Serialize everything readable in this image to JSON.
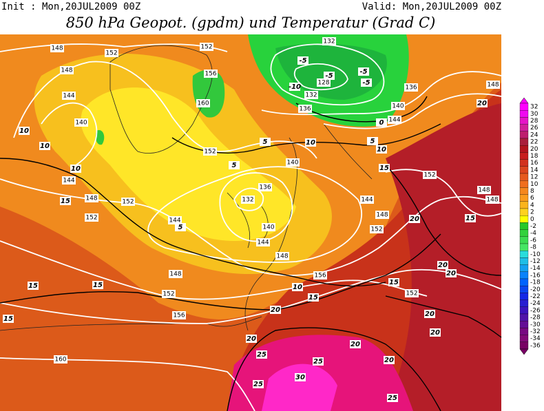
{
  "header": {
    "init": "Init : Mon,20JUL2009 00Z",
    "valid": "Valid: Mon,20JUL2009 00Z",
    "title": "850 hPa Geopot. (gpdm) und Temperatur (Grad C)"
  },
  "colorbar": {
    "labels": [
      32,
      30,
      28,
      26,
      24,
      22,
      20,
      18,
      16,
      14,
      12,
      10,
      8,
      6,
      4,
      2,
      0,
      -2,
      -4,
      -6,
      -8,
      -10,
      -12,
      -14,
      -16,
      -18,
      -20,
      -22,
      -24,
      -26,
      -28,
      -30,
      -32,
      -34,
      -36
    ]
  },
  "geopotential_labels": [
    "148",
    "152",
    "148",
    "144",
    "140",
    "156",
    "160",
    "152",
    "132",
    "132",
    "128",
    "136",
    "136",
    "140",
    "144",
    "152",
    "140",
    "136",
    "132",
    "144",
    "148",
    "152",
    "152",
    "144",
    "140",
    "144",
    "148",
    "144",
    "148",
    "152",
    "152",
    "148",
    "148",
    "148",
    "148",
    "152",
    "156",
    "160",
    "156",
    "152"
  ],
  "temperature_labels": [
    "10",
    "10",
    "10",
    "15",
    "15",
    "15",
    "15",
    "20",
    "20",
    "25",
    "25",
    "30",
    "25",
    "25",
    "20",
    "20",
    "20",
    "20",
    "20",
    "20",
    "20",
    "20",
    "15",
    "15",
    "15",
    "10",
    "10",
    "10",
    "15",
    "-5",
    "-5",
    "-10",
    "-5",
    "-5",
    "0",
    "5",
    "5",
    "5",
    "5"
  ]
}
